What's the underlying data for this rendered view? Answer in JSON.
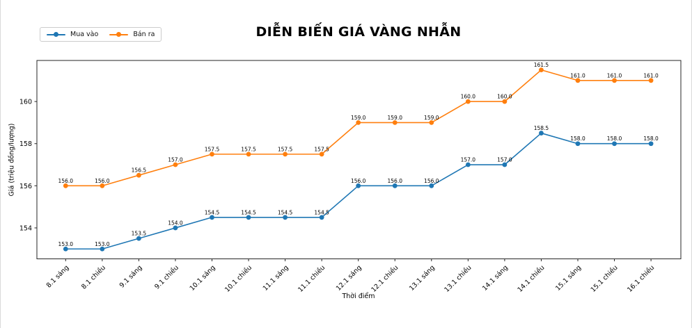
{
  "chart_data": {
    "type": "line",
    "title": "DIỄN BIẾN GIÁ VÀNG NHẪN",
    "xlabel": "Thời điểm",
    "ylabel": "Giá (triệu đồng/lượng)",
    "categories": [
      "8.1 sáng",
      "8.1 chiều",
      "9.1 sáng",
      "9.1 chiều",
      "10.1 sáng",
      "10.1 chiều",
      "11.1 sáng",
      "11.1 chiều",
      "12.1 sáng",
      "12.1 chiều",
      "13.1 sáng",
      "13.1 chiều",
      "14.1 sáng",
      "14.1 chiều",
      "15.1 sáng",
      "15.1 chiều",
      "16.1 chiều"
    ],
    "series": [
      {
        "name": "Mua vào",
        "color": "#1f77b4",
        "values": [
          153.0,
          153.0,
          153.5,
          154.0,
          154.5,
          154.5,
          154.5,
          154.5,
          156.0,
          156.0,
          156.0,
          157.0,
          157.0,
          158.5,
          158.0,
          158.0,
          158.0
        ]
      },
      {
        "name": "Bán ra",
        "color": "#ff7f0e",
        "values": [
          156.0,
          156.0,
          156.5,
          157.0,
          157.5,
          157.5,
          157.5,
          157.5,
          159.0,
          159.0,
          159.0,
          160.0,
          160.0,
          161.5,
          161.0,
          161.0,
          161.0
        ]
      }
    ],
    "yticks": [
      154,
      156,
      158,
      160
    ],
    "y_tick_labels": [
      "154",
      "156",
      "158",
      "160"
    ],
    "ylim": [
      152.53,
      161.95
    ],
    "grid": false,
    "legend_position": "top-left",
    "data_labels": true,
    "data_label_decimals": 1,
    "axis_color": "#262626"
  }
}
